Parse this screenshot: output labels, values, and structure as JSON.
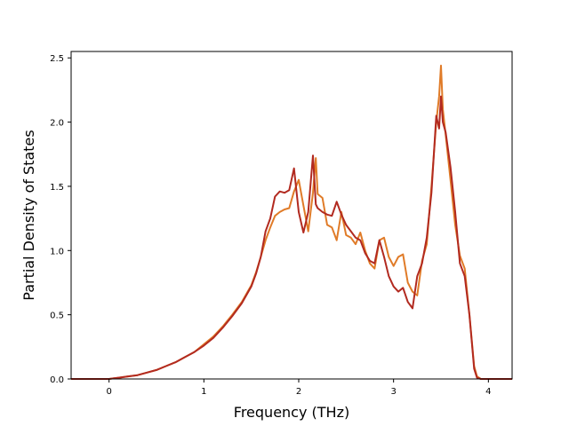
{
  "chart_data": {
    "type": "line",
    "title": "",
    "xlabel": "Frequency (THz)",
    "ylabel": "Partial Density of States",
    "xlim": [
      -0.4,
      4.25
    ],
    "ylim": [
      0.0,
      2.55
    ],
    "x_ticks": [
      0,
      1,
      2,
      3,
      4
    ],
    "y_ticks": [
      0.0,
      0.5,
      1.0,
      1.5,
      2.0,
      2.5
    ],
    "x_tick_labels": [
      "0",
      "1",
      "2",
      "3",
      "4"
    ],
    "y_tick_labels": [
      "0.0",
      "0.5",
      "1.0",
      "1.5",
      "2.0",
      "2.5"
    ],
    "grid": false,
    "legend": "none",
    "series": [
      {
        "color": "#e07b28",
        "x": [
          -0.4,
          -0.3,
          -0.2,
          -0.1,
          0.0,
          0.1,
          0.2,
          0.3,
          0.4,
          0.5,
          0.6,
          0.7,
          0.8,
          0.9,
          1.0,
          1.1,
          1.2,
          1.3,
          1.4,
          1.5,
          1.55,
          1.6,
          1.65,
          1.7,
          1.75,
          1.8,
          1.85,
          1.9,
          1.95,
          2.0,
          2.05,
          2.1,
          2.15,
          2.18,
          2.2,
          2.25,
          2.3,
          2.35,
          2.4,
          2.45,
          2.5,
          2.55,
          2.6,
          2.65,
          2.7,
          2.75,
          2.8,
          2.85,
          2.9,
          2.95,
          3.0,
          3.05,
          3.1,
          3.15,
          3.2,
          3.25,
          3.3,
          3.35,
          3.4,
          3.45,
          3.48,
          3.5,
          3.52,
          3.55,
          3.6,
          3.65,
          3.7,
          3.75,
          3.8,
          3.85,
          3.88,
          3.92,
          4.0,
          4.25
        ],
        "y": [
          0,
          0,
          0,
          0,
          0,
          0.01,
          0.02,
          0.03,
          0.05,
          0.07,
          0.1,
          0.13,
          0.17,
          0.21,
          0.27,
          0.33,
          0.41,
          0.5,
          0.6,
          0.73,
          0.83,
          0.95,
          1.08,
          1.18,
          1.27,
          1.3,
          1.32,
          1.33,
          1.46,
          1.55,
          1.35,
          1.15,
          1.45,
          1.72,
          1.44,
          1.41,
          1.2,
          1.18,
          1.08,
          1.3,
          1.12,
          1.1,
          1.05,
          1.14,
          1.0,
          0.9,
          0.86,
          1.08,
          1.1,
          0.95,
          0.88,
          0.95,
          0.97,
          0.75,
          0.68,
          0.65,
          0.92,
          1.05,
          1.5,
          2.0,
          2.2,
          2.44,
          2.1,
          1.9,
          1.55,
          1.2,
          0.96,
          0.86,
          0.5,
          0.1,
          0.02,
          0,
          0,
          0
        ]
      },
      {
        "color": "#b22a20",
        "x": [
          -0.4,
          -0.3,
          -0.2,
          -0.1,
          0.0,
          0.1,
          0.2,
          0.3,
          0.4,
          0.5,
          0.6,
          0.7,
          0.8,
          0.9,
          1.0,
          1.1,
          1.2,
          1.3,
          1.4,
          1.5,
          1.55,
          1.6,
          1.65,
          1.7,
          1.75,
          1.8,
          1.85,
          1.9,
          1.95,
          2.0,
          2.05,
          2.1,
          2.15,
          2.18,
          2.2,
          2.25,
          2.3,
          2.35,
          2.4,
          2.45,
          2.5,
          2.55,
          2.6,
          2.65,
          2.7,
          2.75,
          2.8,
          2.85,
          2.9,
          2.95,
          3.0,
          3.05,
          3.1,
          3.15,
          3.2,
          3.25,
          3.3,
          3.35,
          3.4,
          3.45,
          3.48,
          3.5,
          3.52,
          3.55,
          3.6,
          3.65,
          3.7,
          3.75,
          3.8,
          3.85,
          3.88,
          3.92,
          4.0,
          4.25
        ],
        "y": [
          0,
          0,
          0,
          0,
          0,
          0.01,
          0.02,
          0.03,
          0.05,
          0.07,
          0.1,
          0.13,
          0.17,
          0.21,
          0.26,
          0.32,
          0.4,
          0.49,
          0.59,
          0.72,
          0.82,
          0.95,
          1.15,
          1.25,
          1.42,
          1.46,
          1.45,
          1.47,
          1.64,
          1.3,
          1.14,
          1.3,
          1.74,
          1.36,
          1.33,
          1.3,
          1.28,
          1.27,
          1.38,
          1.28,
          1.2,
          1.15,
          1.1,
          1.08,
          0.98,
          0.92,
          0.9,
          1.08,
          0.95,
          0.8,
          0.72,
          0.68,
          0.71,
          0.6,
          0.55,
          0.8,
          0.9,
          1.1,
          1.45,
          2.05,
          1.95,
          2.2,
          2.0,
          1.92,
          1.65,
          1.3,
          0.9,
          0.8,
          0.5,
          0.08,
          0.01,
          0,
          0,
          0
        ]
      }
    ]
  }
}
